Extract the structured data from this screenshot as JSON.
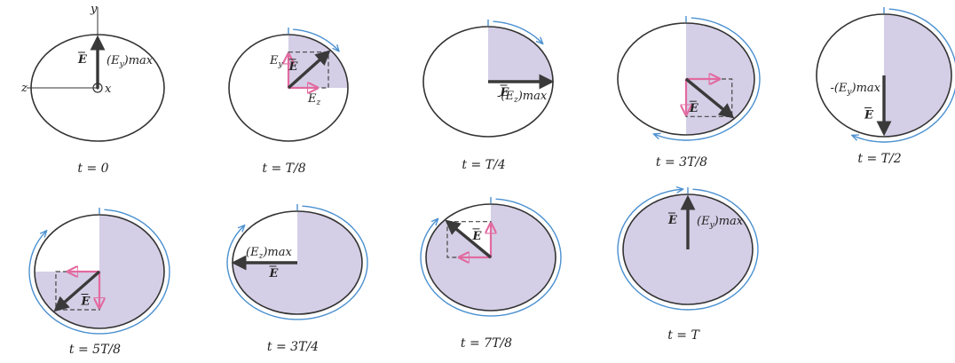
{
  "colors": {
    "ellipse_stroke": "#333333",
    "shade": "#cdc7e2",
    "E_arrow": "#3a3a3a",
    "component_arrow": "#e26aa0",
    "rotation_arrow": "#4a90d0",
    "text": "#222222"
  },
  "axes": {
    "y": "y",
    "z": "z",
    "x": "x"
  },
  "symbols": {
    "E": "E",
    "Ey": "E",
    "Ey_sub": "y",
    "Ez": "E",
    "Ez_sub": "z"
  },
  "panels": [
    {
      "id": "t0",
      "time_label": "t = 0",
      "angle_deg": 90,
      "shade": "none",
      "E_label": "(E",
      "E_label_sub": "y",
      "E_label_tail": ")max"
    },
    {
      "id": "tT8",
      "time_label": "t = T/8",
      "angle_deg": 45,
      "shade": "q1",
      "E_label": "",
      "E_label_sub": "",
      "E_label_tail": ""
    },
    {
      "id": "tT4",
      "time_label": "t = T/4",
      "angle_deg": 0,
      "shade": "q1",
      "E_label": "-(E",
      "E_label_sub": "z",
      "E_label_tail": ")max"
    },
    {
      "id": "t3T8",
      "time_label": "t = 3T/8",
      "angle_deg": -45,
      "shade": "right-half",
      "E_label": "",
      "E_label_sub": "",
      "E_label_tail": ""
    },
    {
      "id": "tT2",
      "time_label": "t = T/2",
      "angle_deg": -90,
      "shade": "right-half",
      "E_label": "-(E",
      "E_label_sub": "y",
      "E_label_tail": ")max"
    },
    {
      "id": "t5T8",
      "time_label": "t = 5T/8",
      "angle_deg": -135,
      "shade": "three-q",
      "E_label": "",
      "E_label_sub": "",
      "E_label_tail": ""
    },
    {
      "id": "t3T4",
      "time_label": "t = 3T/4",
      "angle_deg": 180,
      "shade": "three-q",
      "E_label": "(E",
      "E_label_sub": "z",
      "E_label_tail": ")max"
    },
    {
      "id": "t7T8",
      "time_label": "t = 7T/8",
      "angle_deg": 135,
      "shade": "seven-e",
      "E_label": "",
      "E_label_sub": "",
      "E_label_tail": ""
    },
    {
      "id": "tT",
      "time_label": "t = T",
      "angle_deg": 90,
      "shade": "full",
      "E_label": "(E",
      "E_label_sub": "y",
      "E_label_tail": ")max"
    }
  ]
}
